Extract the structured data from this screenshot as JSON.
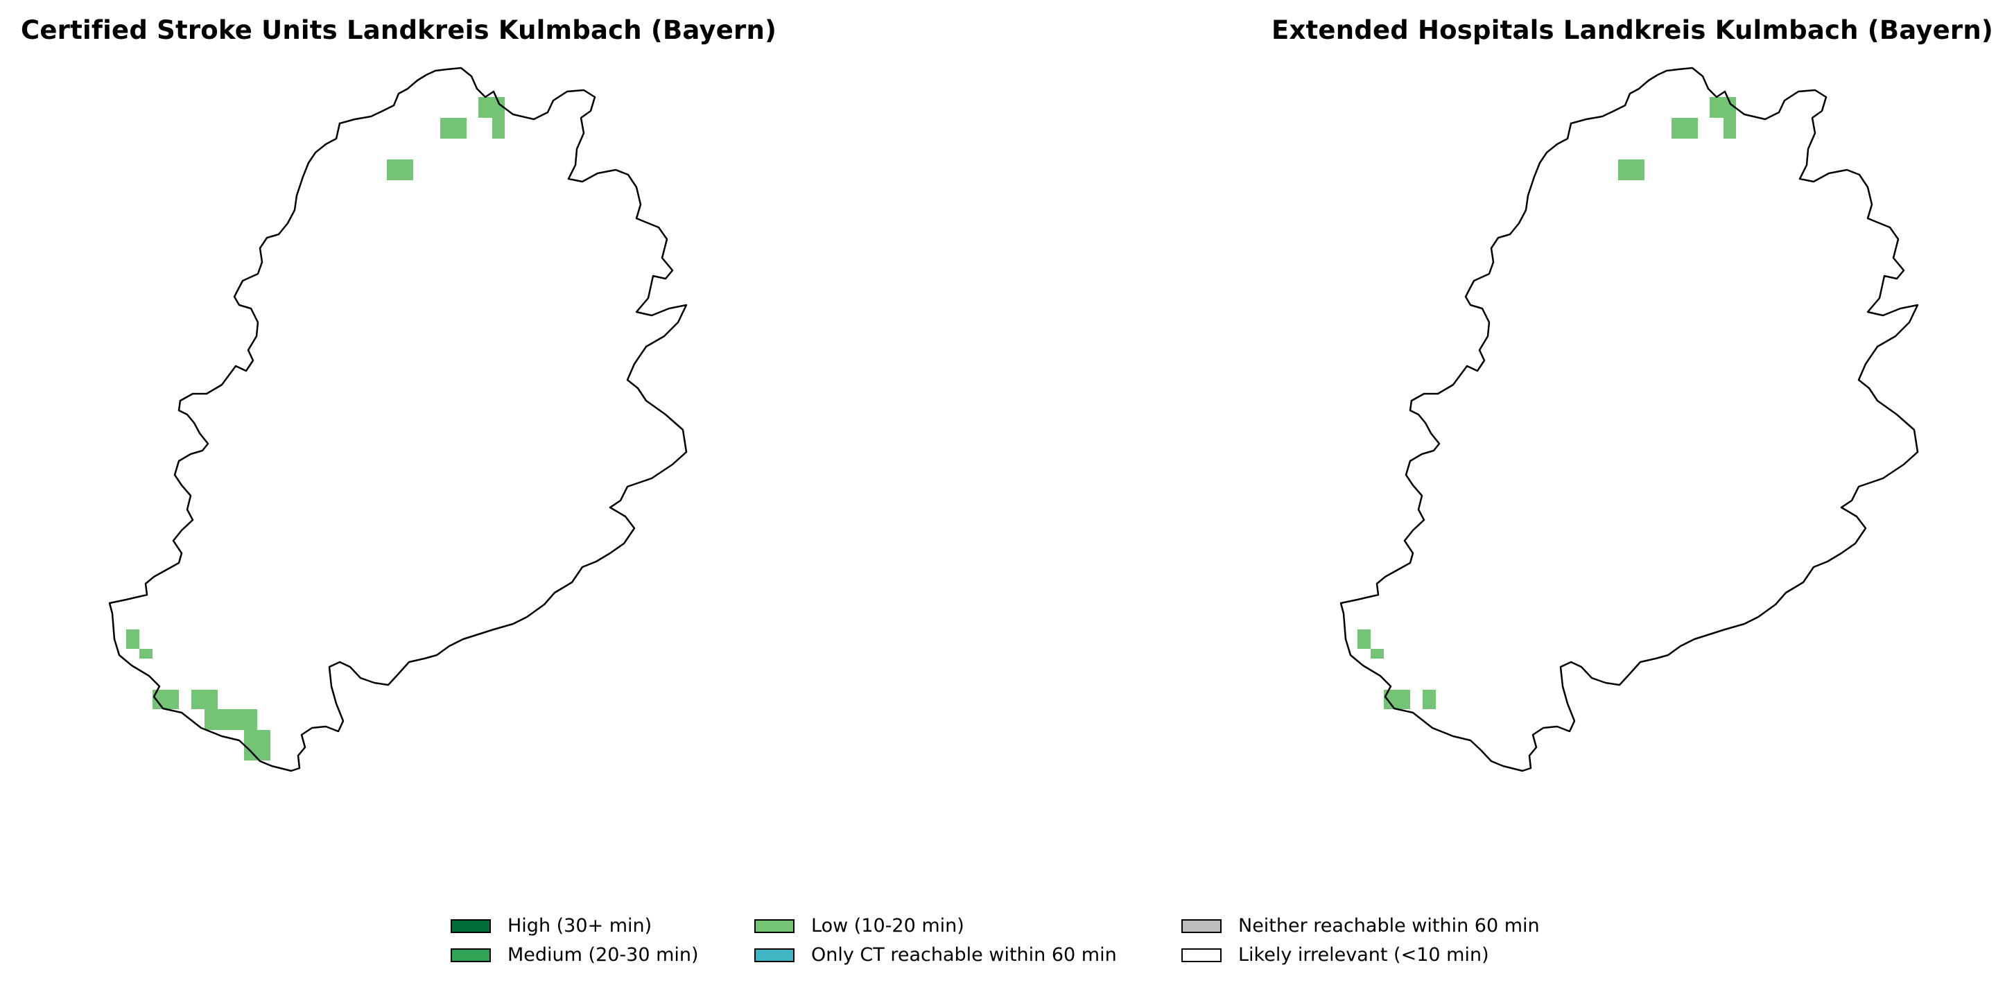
{
  "maps": [
    {
      "title": "Certified Stroke Units Landkreis Kulmbach (Bayern)"
    },
    {
      "title": "Extended Hospitals Landkreis Kulmbach (Bayern)"
    }
  ],
  "legend": [
    {
      "label": "High (30+ min)",
      "color": "#006d3a"
    },
    {
      "label": "Medium (20-30 min)",
      "color": "#31a354"
    },
    {
      "label": "Low (10-20 min)",
      "color": "#74c476"
    },
    {
      "label": "Only CT reachable within 60 min",
      "color": "#41b6c4"
    },
    {
      "label": "Neither reachable within 60 min",
      "color": "#bdbdbd"
    },
    {
      "label": "Likely irrelevant (<10 min)",
      "color": "#ffffff"
    }
  ]
}
